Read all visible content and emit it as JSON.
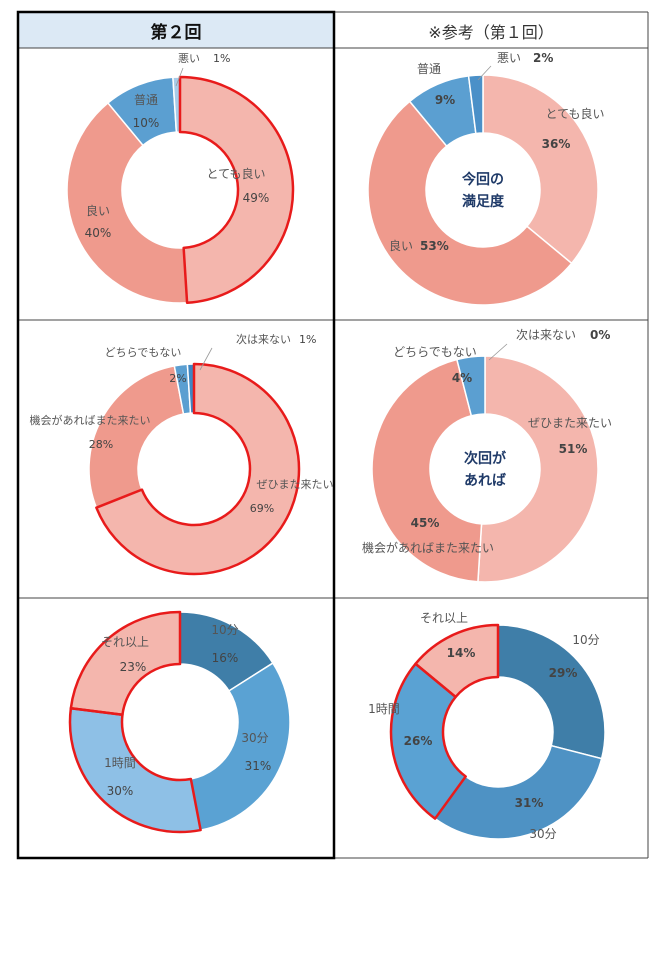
{
  "headers": {
    "left": "第２回",
    "right": "※参考（第１回）"
  },
  "colors": {
    "left_header_bg": "#dce9f5",
    "highlight": "#e81b1b",
    "grid": "#333333"
  },
  "chart_data": [
    {
      "type": "pie",
      "panel": "round2-satisfaction",
      "donut": true,
      "slices": [
        {
          "label": "とても良い",
          "value": 49,
          "pct": "49%",
          "color": "#f4b6ad",
          "highlight": true
        },
        {
          "label": "良い",
          "value": 40,
          "pct": "40%",
          "color": "#ef9a8d",
          "highlight": false
        },
        {
          "label": "普通",
          "value": 10,
          "pct": "10%",
          "color": "#5b9fd1",
          "highlight": false
        },
        {
          "label": "悪い",
          "value": 1,
          "pct": "1%",
          "color": "#a9cbe8",
          "highlight": false
        }
      ]
    },
    {
      "type": "pie",
      "panel": "round1-satisfaction",
      "donut": true,
      "center_label": [
        "今回の",
        "満足度"
      ],
      "slices": [
        {
          "label": "とても良い",
          "value": 36,
          "pct": "36%",
          "color": "#f4b6ad"
        },
        {
          "label": "良い",
          "value": 53,
          "pct": "53%",
          "color": "#ef9a8d"
        },
        {
          "label": "普通",
          "value": 9,
          "pct": "9%",
          "color": "#5b9fd1"
        },
        {
          "label": "悪い",
          "value": 2,
          "pct": "2%",
          "color": "#4a90c8"
        }
      ]
    },
    {
      "type": "pie",
      "panel": "round2-next-time",
      "donut": true,
      "slices": [
        {
          "label": "ぜひまた来たい",
          "value": 69,
          "pct": "69%",
          "color": "#f4b6ad",
          "highlight": true
        },
        {
          "label": "機会があればまた来たい",
          "value": 28,
          "pct": "28%",
          "color": "#ef9a8d",
          "highlight": false
        },
        {
          "label": "どちらでもない",
          "value": 2,
          "pct": "2%",
          "color": "#5b9fd1",
          "highlight": false
        },
        {
          "label": "次は来ない",
          "value": 1,
          "pct": "1%",
          "color": "#3f86c2",
          "highlight": false
        }
      ]
    },
    {
      "type": "pie",
      "panel": "round1-next-time",
      "donut": true,
      "center_label": [
        "次回が",
        "あれば"
      ],
      "slices": [
        {
          "label": "ぜひまた来たい",
          "value": 51,
          "pct": "51%",
          "color": "#f4b6ad"
        },
        {
          "label": "機会があればまた来たい",
          "value": 45,
          "pct": "45%",
          "color": "#ef9a8d"
        },
        {
          "label": "どちらでもない",
          "value": 4,
          "pct": "4%",
          "color": "#5b9fd1"
        },
        {
          "label": "次は来ない",
          "value": 0,
          "pct": "0%",
          "color": "#3f86c2"
        }
      ]
    },
    {
      "type": "pie",
      "panel": "round2-duration",
      "donut": true,
      "slices": [
        {
          "label": "10分",
          "value": 16,
          "pct": "16%",
          "color": "#3f7ea8",
          "highlight": false
        },
        {
          "label": "30分",
          "value": 31,
          "pct": "31%",
          "color": "#5aa2d3",
          "highlight": false
        },
        {
          "label": "1時間",
          "value": 30,
          "pct": "30%",
          "color": "#8ec0e6",
          "highlight": true
        },
        {
          "label": "それ以上",
          "value": 23,
          "pct": "23%",
          "color": "#f4b6ad",
          "highlight": true
        }
      ]
    },
    {
      "type": "pie",
      "panel": "round1-duration",
      "donut": true,
      "slices": [
        {
          "label": "10分",
          "value": 29,
          "pct": "29%",
          "color": "#3f7ea8",
          "highlight": false
        },
        {
          "label": "30分",
          "value": 31,
          "pct": "31%",
          "color": "#4e92c4",
          "highlight": false
        },
        {
          "label": "1時間",
          "value": 26,
          "pct": "26%",
          "color": "#5aa2d3",
          "highlight": true
        },
        {
          "label": "それ以上",
          "value": 14,
          "pct": "14%",
          "color": "#f4b6ad",
          "highlight": true
        }
      ]
    }
  ]
}
